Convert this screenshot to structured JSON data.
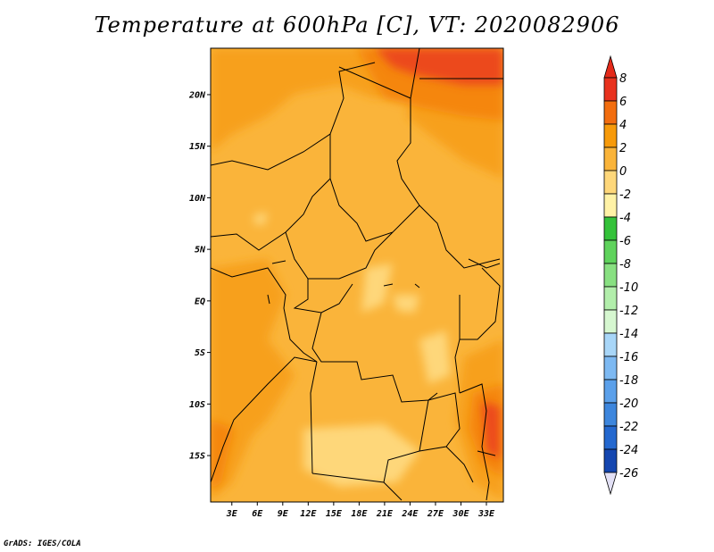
{
  "title": "Temperature at 600hPa [C], VT: 2020082906",
  "credit": "GrADS: IGES/COLA",
  "map": {
    "lat_labels": [
      "20N",
      "15N",
      "10N",
      "5N",
      "EQ",
      "5S",
      "10S",
      "15S"
    ],
    "lat_values": [
      20,
      15,
      10,
      5,
      0,
      -5,
      -10,
      -15
    ],
    "lon_labels": [
      "3E",
      "6E",
      "9E",
      "12E",
      "15E",
      "18E",
      "21E",
      "24E",
      "27E",
      "30E",
      "33E"
    ],
    "lon_values": [
      3,
      6,
      9,
      12,
      15,
      18,
      21,
      24,
      27,
      30,
      33
    ],
    "lon_range": [
      0.5,
      35
    ],
    "lat_range": [
      -19.5,
      24.5
    ]
  },
  "colorbar": {
    "labels": [
      "8",
      "6",
      "4",
      "2",
      "0",
      "-2",
      "-4",
      "-6",
      "-8",
      "-10",
      "-12",
      "-14",
      "-16",
      "-18",
      "-20",
      "-22",
      "-24",
      "-26"
    ],
    "colors": [
      "#e8321e",
      "#f26d0f",
      "#f79a0a",
      "#fab43a",
      "#fed77a",
      "#fff2a6",
      "#34c23a",
      "#5fd35c",
      "#88e081",
      "#b2eeab",
      "#d6f7d0",
      "#a8d6f8",
      "#7db9f2",
      "#5ba0ea",
      "#3d86dd",
      "#2468cf",
      "#1446b0",
      "#0a2089"
    ],
    "top_color": "#e42a1a",
    "bottom_color": "#e2e0f5"
  }
}
